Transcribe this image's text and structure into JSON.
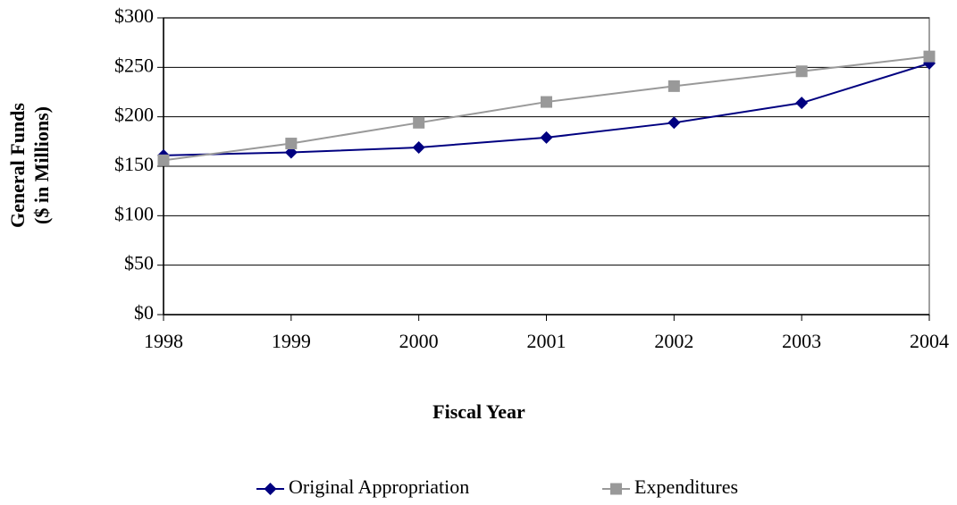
{
  "chart_data": {
    "type": "line",
    "xlabel": "Fiscal Year",
    "ylabel": [
      "General Funds",
      "($ in Millions)"
    ],
    "x": [
      1998,
      1999,
      2000,
      2001,
      2002,
      2003,
      2004
    ],
    "xlim": [
      1998,
      2004
    ],
    "xticks": [
      1998,
      1999,
      2000,
      2001,
      2002,
      2003,
      2004
    ],
    "ylim": [
      0,
      300
    ],
    "yticks": [
      {
        "value": 0,
        "label": "$0"
      },
      {
        "value": 50,
        "label": "$50"
      },
      {
        "value": 100,
        "label": "$100"
      },
      {
        "value": 150,
        "label": "$150"
      },
      {
        "value": 200,
        "label": "$200"
      },
      {
        "value": 250,
        "label": "$250"
      },
      {
        "value": 300,
        "label": "$300"
      }
    ],
    "grid": true,
    "legend": "bottom",
    "series": [
      {
        "name": "Original Appropriation",
        "color": "#000080",
        "marker": "diamond",
        "values": [
          161,
          164,
          169,
          179,
          194,
          214,
          254
        ]
      },
      {
        "name": "Expenditures",
        "color": "#999999",
        "marker": "square",
        "values": [
          156,
          173,
          194,
          215,
          231,
          246,
          261
        ]
      }
    ]
  }
}
